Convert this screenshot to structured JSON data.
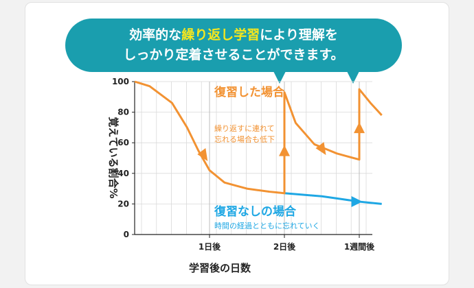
{
  "headline": {
    "line1_before": "効率的な",
    "line1_emphasis": "繰り返し学習",
    "line1_after": "により理解を",
    "line2": "しっかり定着させることができます。"
  },
  "colors": {
    "bubble": "#1a9eae",
    "emphasis": "#f8e71c",
    "reviewed": "#f29232",
    "not_reviewed": "#1ea7e4",
    "grid": "#d9d9d9"
  },
  "chart_data": {
    "type": "line",
    "xlabel": "学習後の日数",
    "ylabel": "覚えている割合%",
    "ylim": [
      0,
      100
    ],
    "yticks": [
      0,
      20,
      40,
      60,
      80,
      100
    ],
    "x_ticks": [
      "1日後",
      "2日後",
      "1週間後"
    ],
    "grid": true,
    "series": [
      {
        "name": "復習した場合",
        "note": [
          "繰り返すに連れて",
          "忘れる場合も低下"
        ],
        "points": [
          [
            0,
            100
          ],
          [
            0.2,
            97
          ],
          [
            0.5,
            86
          ],
          [
            0.7,
            70
          ],
          [
            0.85,
            55
          ],
          [
            1.0,
            42
          ],
          [
            1.2,
            34
          ],
          [
            1.5,
            30
          ],
          [
            1.8,
            28
          ],
          [
            2.0,
            27
          ],
          [
            2.0,
            93
          ],
          [
            2.15,
            73
          ],
          [
            2.4,
            59
          ],
          [
            2.7,
            53
          ],
          [
            3.0,
            49
          ],
          [
            3.0,
            95
          ],
          [
            3.15,
            86
          ],
          [
            3.3,
            78
          ]
        ]
      },
      {
        "name": "復習なしの場合",
        "note": [
          "時間の経過とともに忘れていく"
        ],
        "points": [
          [
            2.0,
            27
          ],
          [
            2.5,
            25
          ],
          [
            3.0,
            21.5
          ],
          [
            3.3,
            20
          ]
        ]
      }
    ]
  }
}
